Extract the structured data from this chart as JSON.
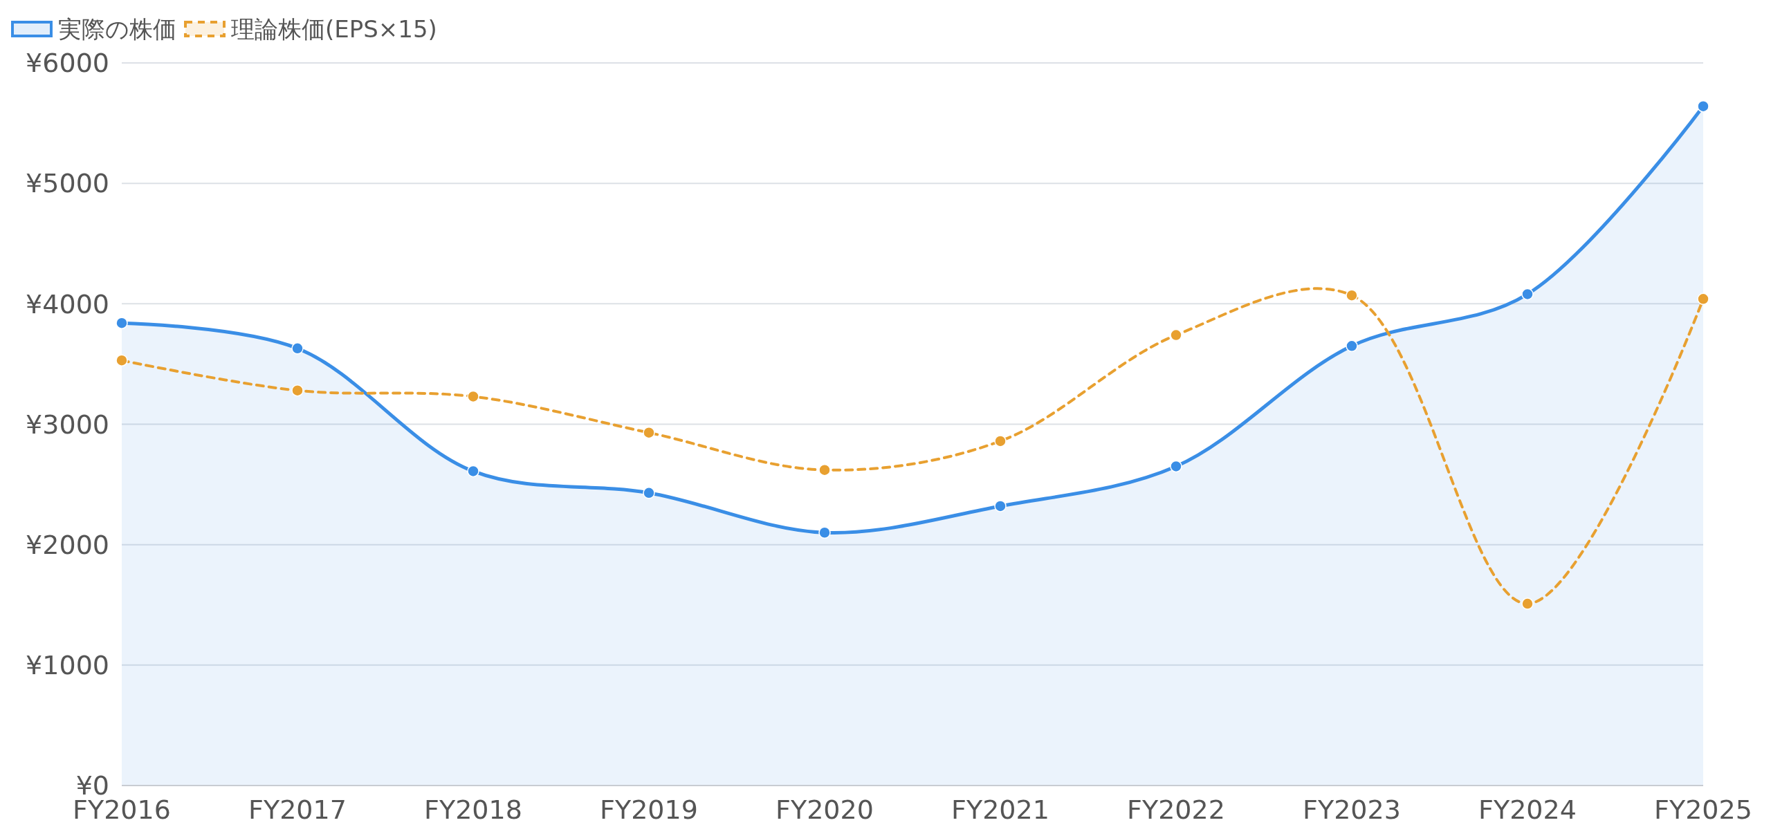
{
  "chart_data": {
    "type": "line",
    "categories": [
      "FY2016",
      "FY2017",
      "FY2018",
      "FY2019",
      "FY2020",
      "FY2021",
      "FY2022",
      "FY2023",
      "FY2024",
      "FY2025"
    ],
    "series": [
      {
        "name": "実際の株価",
        "type": "area",
        "color": "#3a8ee6",
        "values": [
          3840,
          3630,
          2610,
          2430,
          2100,
          2320,
          2650,
          3650,
          4080,
          5640
        ]
      },
      {
        "name": "理論株価(EPS×15)",
        "line_style": "dashed",
        "color": "#e8a030",
        "values": [
          3530,
          3280,
          3230,
          2930,
          2620,
          2860,
          3740,
          4070,
          1510,
          4040
        ]
      }
    ],
    "ylim": [
      0,
      6000
    ],
    "yticks": [
      {
        "value": 0,
        "label": "¥0"
      },
      {
        "value": 1000,
        "label": "¥1000"
      },
      {
        "value": 2000,
        "label": "¥2000"
      },
      {
        "value": 3000,
        "label": "¥3000"
      },
      {
        "value": 4000,
        "label": "¥4000"
      },
      {
        "value": 5000,
        "label": "¥5000"
      },
      {
        "value": 6000,
        "label": "¥6000"
      }
    ],
    "grid": "y",
    "legend": "top left",
    "marker": "circle"
  }
}
